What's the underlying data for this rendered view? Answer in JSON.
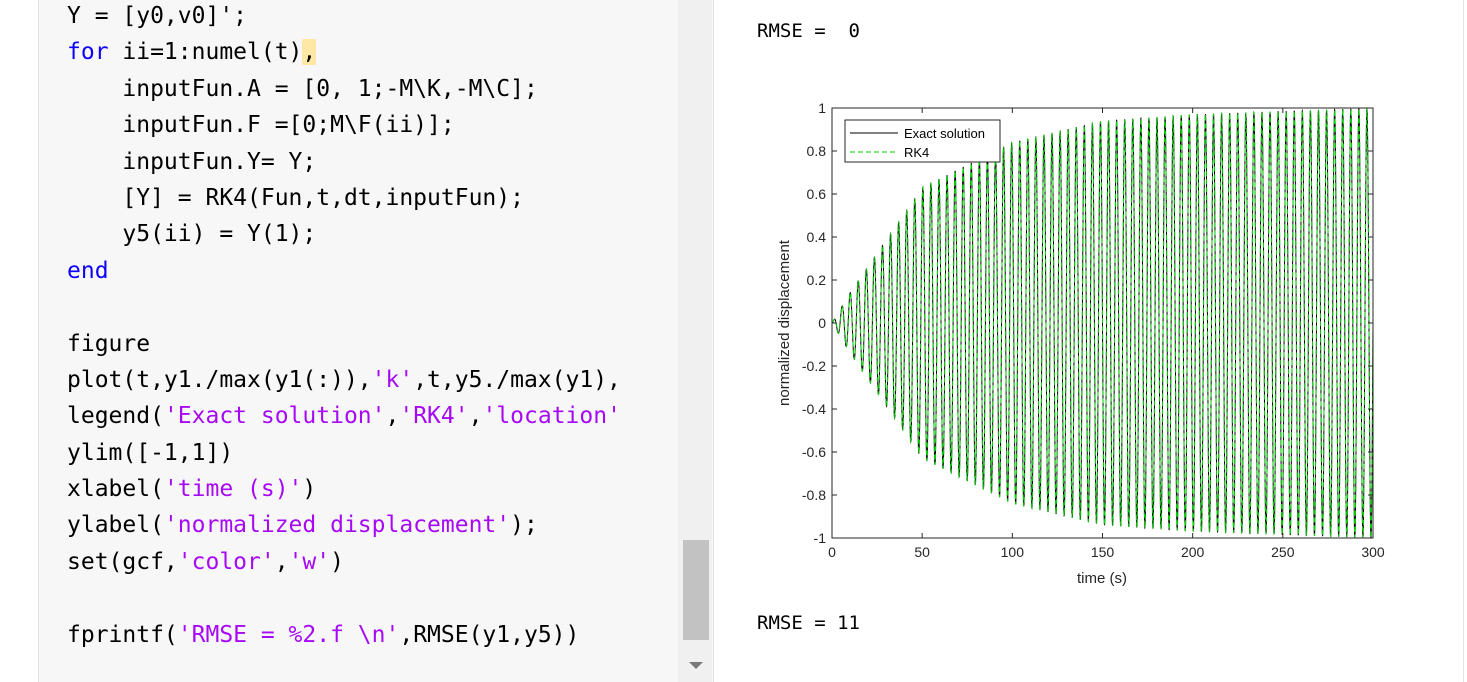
{
  "code_editor": {
    "lines": [
      [
        {
          "t": "Y = [y0,v0]';",
          "c": "plain"
        }
      ],
      [
        {
          "t": "for",
          "c": "kw"
        },
        {
          "t": " ii=1:numel(t)",
          "c": "plain"
        },
        {
          "t": ",",
          "c": "hl"
        }
      ],
      [
        {
          "t": "    inputFun.A = [0, 1;-M\\K,-M\\C];",
          "c": "plain"
        }
      ],
      [
        {
          "t": "    inputFun.F =[0;M\\F(ii)];",
          "c": "plain"
        }
      ],
      [
        {
          "t": "    inputFun.Y= Y;",
          "c": "plain"
        }
      ],
      [
        {
          "t": "    [Y] = RK4(Fun,t,dt,inputFun);",
          "c": "plain"
        }
      ],
      [
        {
          "t": "    y5(ii) = Y(1);",
          "c": "plain"
        }
      ],
      [
        {
          "t": "end",
          "c": "kw"
        }
      ],
      [
        {
          "t": "",
          "c": "plain"
        }
      ],
      [
        {
          "t": "figure",
          "c": "plain"
        }
      ],
      [
        {
          "t": "plot(t,y1./max(y1(:)),",
          "c": "plain"
        },
        {
          "t": "'k'",
          "c": "str"
        },
        {
          "t": ",t,y5./max(y1),",
          "c": "plain"
        }
      ],
      [
        {
          "t": "legend(",
          "c": "plain"
        },
        {
          "t": "'Exact solution'",
          "c": "str"
        },
        {
          "t": ",",
          "c": "plain"
        },
        {
          "t": "'RK4'",
          "c": "str"
        },
        {
          "t": ",",
          "c": "plain"
        },
        {
          "t": "'location'",
          "c": "str"
        }
      ],
      [
        {
          "t": "ylim([-1,1])",
          "c": "plain"
        }
      ],
      [
        {
          "t": "xlabel(",
          "c": "plain"
        },
        {
          "t": "'time (s)'",
          "c": "str"
        },
        {
          "t": ")",
          "c": "plain"
        }
      ],
      [
        {
          "t": "ylabel(",
          "c": "plain"
        },
        {
          "t": "'normalized displacement'",
          "c": "str"
        },
        {
          "t": ");",
          "c": "plain"
        }
      ],
      [
        {
          "t": "set(gcf,",
          "c": "plain"
        },
        {
          "t": "'color'",
          "c": "str"
        },
        {
          "t": ",",
          "c": "plain"
        },
        {
          "t": "'w'",
          "c": "str"
        },
        {
          "t": ")",
          "c": "plain"
        }
      ],
      [
        {
          "t": "",
          "c": "plain"
        }
      ],
      [
        {
          "t": "fprintf(",
          "c": "plain"
        },
        {
          "t": "'RMSE = %2.f \\n'",
          "c": "str"
        },
        {
          "t": ",RMSE(y1,y5))",
          "c": "plain"
        }
      ]
    ]
  },
  "output": {
    "rmse_first": "RMSE =  0",
    "rmse_second": "RMSE = 11"
  },
  "colors": {
    "keyword": "#0e00ff",
    "string": "#a709f5",
    "highlight": "#ffe7a6",
    "exact_line": "#000000",
    "rk4_line": "#00d000"
  },
  "chart_data": {
    "type": "line",
    "title": "",
    "xlabel": "time (s)",
    "ylabel": "normalized displacement",
    "xlim": [
      0,
      300
    ],
    "ylim": [
      -1,
      1
    ],
    "xticks": [
      "0",
      "50",
      "100",
      "150",
      "200",
      "250",
      "300"
    ],
    "yticks": [
      "-1",
      "-0.8",
      "-0.6",
      "-0.4",
      "-0.2",
      "0",
      "0.2",
      "0.4",
      "0.6",
      "0.8",
      "1"
    ],
    "grid": false,
    "legend_location": "top-left",
    "series": [
      {
        "name": "Exact solution",
        "style": "solid",
        "color": "#000000"
      },
      {
        "name": "RK4",
        "style": "dashed",
        "color": "#00d000"
      }
    ],
    "signal": {
      "form": "growing sinusoid",
      "cycles": 67,
      "amplitude_points": [
        [
          0,
          0
        ],
        [
          10,
          0.14
        ],
        [
          50,
          0.63
        ],
        [
          100,
          0.84
        ],
        [
          150,
          0.94
        ],
        [
          200,
          0.97
        ],
        [
          300,
          1.0
        ]
      ]
    }
  }
}
